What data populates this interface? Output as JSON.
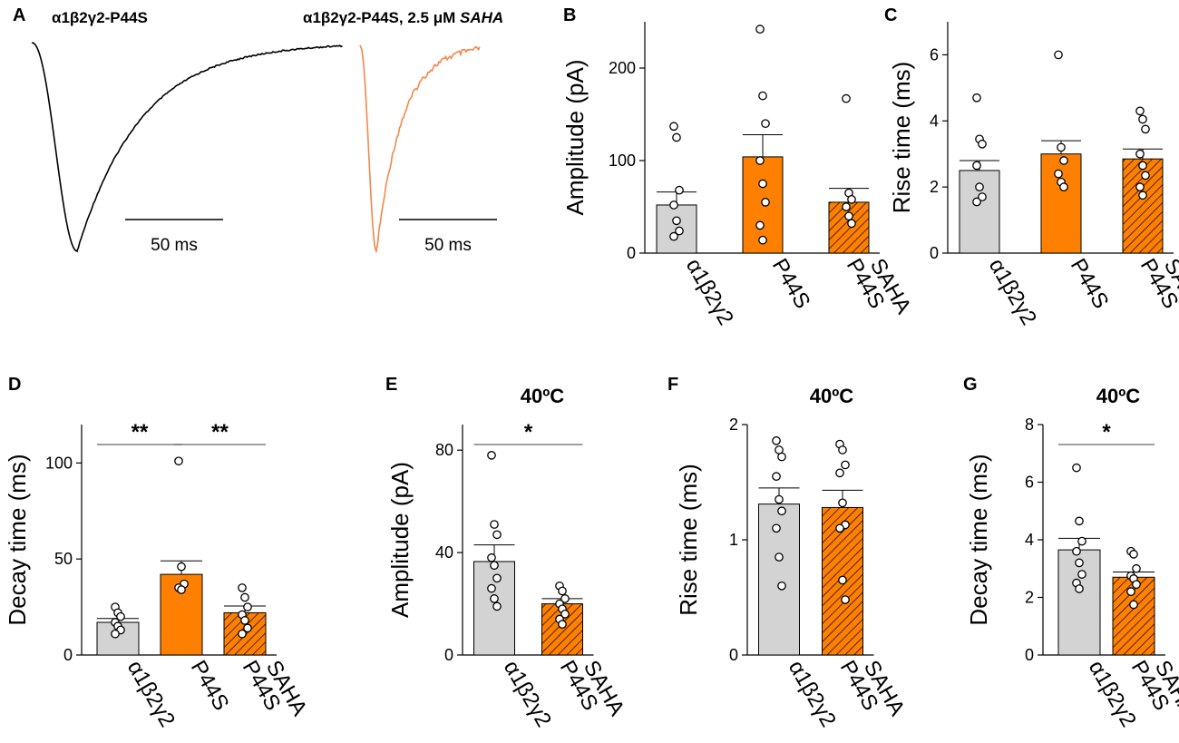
{
  "colors": {
    "control": "#d3d3d3",
    "p44s": "#ff8000",
    "saha": "#ff8000",
    "trace_black": "#000000",
    "trace_orange": "#f4874b"
  },
  "panel_a": {
    "label": "A",
    "trace1_title_parts": [
      "α1β2γ2-P44S"
    ],
    "trace2_title_parts": [
      "α1β2γ2-P44S, 2.5 μM ",
      "SAHA"
    ],
    "scale1": "50 ms",
    "scale2": "50 ms"
  },
  "chart_data": [
    {
      "id": "B",
      "type": "bar",
      "panel_label": "B",
      "ylabel": "Amplitude (pA)",
      "ylim": [
        0,
        250
      ],
      "yticks": [
        0,
        100,
        200
      ],
      "categories": [
        [
          "α1β2γ2"
        ],
        [
          "P44S"
        ],
        [
          "P44S",
          "SAHA"
        ]
      ],
      "styles": [
        "control",
        "p44s",
        "saha"
      ],
      "values": [
        52,
        104,
        55
      ],
      "sem": [
        14,
        24,
        15
      ],
      "points": [
        [
          137,
          125,
          68,
          52,
          35,
          24,
          18
        ],
        [
          242,
          170,
          140,
          100,
          75,
          55,
          30,
          14
        ],
        [
          167,
          65,
          58,
          50,
          40,
          32
        ]
      ],
      "significance": [],
      "title": ""
    },
    {
      "id": "C",
      "type": "bar",
      "panel_label": "C",
      "ylabel": "Rise time (ms)",
      "ylim": [
        0,
        7
      ],
      "yticks": [
        0,
        2,
        4,
        6
      ],
      "categories": [
        [
          "α1β2γ2"
        ],
        [
          "P44S"
        ],
        [
          "P44S",
          "SAHA"
        ]
      ],
      "styles": [
        "control",
        "p44s",
        "saha"
      ],
      "values": [
        2.5,
        3.0,
        2.85
      ],
      "sem": [
        0.3,
        0.4,
        0.3
      ],
      "points": [
        [
          4.7,
          3.45,
          3.3,
          2.65,
          2.0,
          1.7,
          1.55
        ],
        [
          6.0,
          3.2,
          2.8,
          2.4,
          2.15,
          2.0
        ],
        [
          4.3,
          4.05,
          3.75,
          3.0,
          2.65,
          2.35,
          2.0,
          1.75
        ]
      ],
      "significance": [],
      "title": ""
    },
    {
      "id": "D",
      "type": "bar",
      "panel_label": "D",
      "ylabel": "Decay time (ms)",
      "ylim": [
        0,
        120
      ],
      "yticks": [
        0,
        50,
        100
      ],
      "categories": [
        [
          "α1β2γ2"
        ],
        [
          "P44S"
        ],
        [
          "P44S",
          "SAHA"
        ]
      ],
      "styles": [
        "control",
        "p44s",
        "saha"
      ],
      "values": [
        17,
        42,
        22
      ],
      "sem": [
        2,
        7,
        3.5
      ],
      "points": [
        [
          25,
          22,
          20,
          17,
          15,
          13,
          11
        ],
        [
          101,
          46,
          37,
          35,
          34
        ],
        [
          35,
          30,
          25,
          21,
          18,
          14,
          11
        ]
      ],
      "significance": [
        {
          "from": 0,
          "to": 1,
          "label": "**"
        },
        {
          "from": 1,
          "to": 2,
          "label": "**"
        }
      ],
      "title": ""
    },
    {
      "id": "E",
      "type": "bar",
      "panel_label": "E",
      "ylabel": "Amplitude (pA)",
      "ylim": [
        0,
        90
      ],
      "yticks": [
        0,
        40,
        80
      ],
      "categories": [
        [
          "α1β2γ2"
        ],
        [
          "P44S",
          "SAHA"
        ]
      ],
      "styles": [
        "control",
        "saha"
      ],
      "values": [
        36.5,
        20
      ],
      "sem": [
        6.5,
        2
      ],
      "points": [
        [
          78,
          51,
          47,
          38,
          35,
          30,
          26,
          22,
          19
        ],
        [
          27,
          25,
          22,
          20,
          18,
          16,
          14,
          12
        ]
      ],
      "significance": [
        {
          "from": 0,
          "to": 1,
          "label": "*"
        }
      ],
      "title": "40ºC"
    },
    {
      "id": "F",
      "type": "bar",
      "panel_label": "F",
      "ylabel": "Rise time (ms)",
      "ylim": [
        0,
        2
      ],
      "yticks": [
        0,
        1,
        2
      ],
      "categories": [
        [
          "α1β2γ2"
        ],
        [
          "P44S",
          "SAHA"
        ]
      ],
      "styles": [
        "control",
        "saha"
      ],
      "values": [
        1.31,
        1.28
      ],
      "sem": [
        0.14,
        0.15
      ],
      "points": [
        [
          1.86,
          1.78,
          1.72,
          1.55,
          1.35,
          1.25,
          1.1,
          0.85,
          0.6
        ],
        [
          1.83,
          1.78,
          1.65,
          1.58,
          1.32,
          1.13,
          1.1,
          0.65,
          0.48
        ]
      ],
      "significance": [],
      "title": "40ºC"
    },
    {
      "id": "G",
      "type": "bar",
      "panel_label": "G",
      "ylabel": "Decay time (ms)",
      "ylim": [
        0,
        8
      ],
      "yticks": [
        0,
        2,
        4,
        6,
        8
      ],
      "categories": [
        [
          "α1β2γ2"
        ],
        [
          "P44S",
          "SAHA"
        ]
      ],
      "styles": [
        "control",
        "saha"
      ],
      "values": [
        3.65,
        2.7
      ],
      "sem": [
        0.4,
        0.18
      ],
      "points": [
        [
          6.5,
          4.65,
          3.95,
          3.6,
          3.2,
          2.8,
          2.5,
          2.3
        ],
        [
          3.6,
          3.5,
          3.0,
          2.75,
          2.65,
          2.45,
          2.2,
          1.75
        ]
      ],
      "significance": [
        {
          "from": 0,
          "to": 1,
          "label": "*"
        }
      ],
      "title": "40ºC"
    }
  ]
}
